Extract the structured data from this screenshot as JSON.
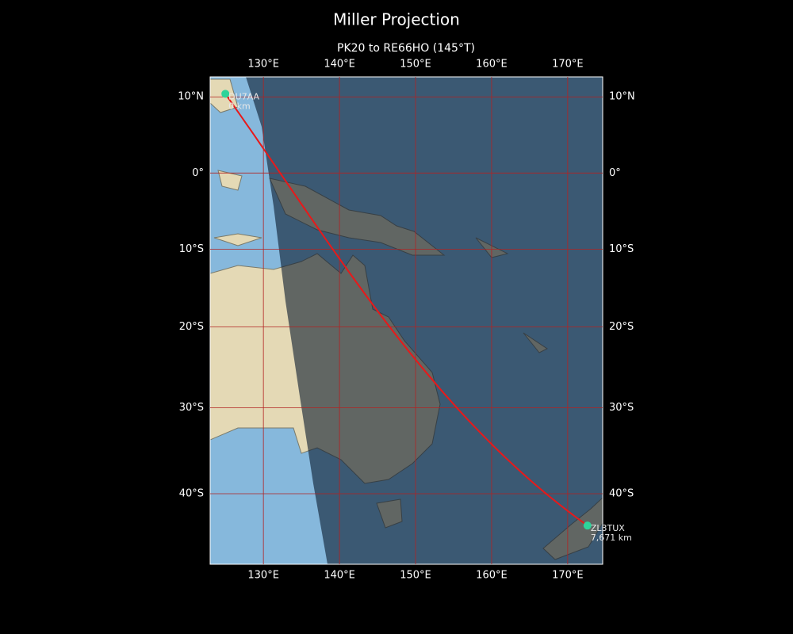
{
  "title": "Miller Projection",
  "subtitle": "PK20 to RE66HO (145°T)",
  "map": {
    "projection": "miller",
    "xlim": [
      123,
      174.6
    ],
    "ylim": [
      -47.6,
      12.6
    ],
    "xticks": [
      {
        "value": 130,
        "label": "130°E"
      },
      {
        "value": 140,
        "label": "140°E"
      },
      {
        "value": 150,
        "label": "150°E"
      },
      {
        "value": 160,
        "label": "160°E"
      },
      {
        "value": 170,
        "label": "170°E"
      }
    ],
    "yticks": [
      {
        "value": 10,
        "label": "10°N"
      },
      {
        "value": 0,
        "label": "0°"
      },
      {
        "value": -10,
        "label": "10°S"
      },
      {
        "value": -20,
        "label": "20°S"
      },
      {
        "value": -30,
        "label": "30°S"
      },
      {
        "value": -40,
        "label": "40°S"
      }
    ],
    "grid_color": "#b22222",
    "route_color": "#e8191a",
    "station_color": "#2ed39a",
    "stations": [
      {
        "name": "DU7AA",
        "lon": 125,
        "lat": 10.4,
        "distance_label": "0 km"
      },
      {
        "name": "ZL3TUX",
        "lon": 172.6,
        "lat": -43.5,
        "distance_label": "7,671 km"
      }
    ]
  }
}
